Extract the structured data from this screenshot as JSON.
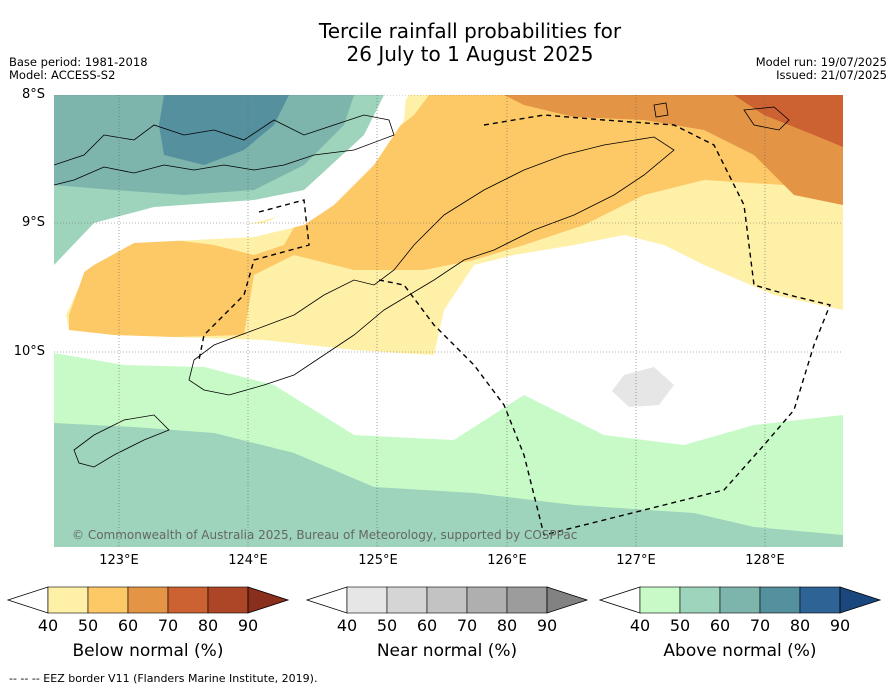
{
  "title": {
    "line1": "Tercile rainfall probabilities for",
    "line2": "26 July to 1 August 2025"
  },
  "meta": {
    "base_period": "Base period: 1981-2018",
    "model": "Model: ACCESS-S2",
    "model_run": "Model run: 19/07/2025",
    "issued": "Issued: 21/07/2025"
  },
  "axes": {
    "lat_labels": [
      "8°S",
      "9°S",
      "10°S"
    ],
    "lon_labels": [
      "123°E",
      "124°E",
      "125°E",
      "126°E",
      "127°E",
      "128°E"
    ],
    "lat_values": [
      -8,
      -9,
      -10
    ],
    "lon_values": [
      123,
      124,
      125,
      126,
      127,
      128
    ],
    "extent": {
      "lon_min": 122.5,
      "lon_max": 128.6,
      "lat_min": -11.5,
      "lat_max": -8
    },
    "gridlines": true
  },
  "copyright": "© Commonwealth of Australia 2025, Bureau of Meteorology, supported by COSPPac",
  "legends": [
    {
      "label": "Below normal (%)",
      "ticks": [
        "40",
        "50",
        "60",
        "70",
        "80",
        "90"
      ],
      "colors": [
        "#fff0a8",
        "#fdc866",
        "#e39445",
        "#cc6131",
        "#ad4626",
        "#8a2f1d"
      ]
    },
    {
      "label": "Near normal (%)",
      "ticks": [
        "40",
        "50",
        "60",
        "70",
        "80",
        "90"
      ],
      "colors": [
        "#e6e6e6",
        "#d5d5d5",
        "#c3c3c3",
        "#afafaf",
        "#9c9c9c",
        "#828282"
      ]
    },
    {
      "label": "Above normal (%)",
      "ticks": [
        "40",
        "50",
        "60",
        "70",
        "80",
        "90"
      ],
      "colors": [
        "#c8fac8",
        "#9dd4bb",
        "#7db4ab",
        "#55909e",
        "#2d6395",
        "#1b477f"
      ]
    }
  ],
  "footer": "--  --  -- EEZ border V11 (Flanders Marine Institute, 2019).",
  "map_colors": {
    "above_40": "#c8fac8",
    "above_50": "#9dd4bb",
    "above_60": "#7db4ab",
    "above_70": "#55909e",
    "below_40": "#fff0a8",
    "below_50": "#fdc866",
    "below_60": "#e39445",
    "below_70": "#cc6131",
    "near_40": "#e6e6e6"
  }
}
